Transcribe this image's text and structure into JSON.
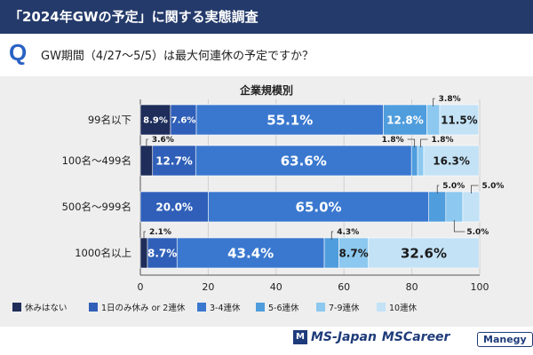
{
  "header": {
    "title": "「2024年GWの予定」に関する実態調査",
    "q_mark": "Q",
    "question": "GW期間（4/27〜5/5）は最大何連休の予定ですか？"
  },
  "chart_data": {
    "type": "bar",
    "orientation": "horizontal",
    "stacked": true,
    "title": "企業規模別",
    "categories": [
      "99名以下",
      "100名〜499名",
      "500名〜999名",
      "1000名以上"
    ],
    "series": [
      {
        "name": "休みはない",
        "color": "#1e2d5a",
        "values": [
          8.9,
          3.6,
          0.0,
          2.1
        ]
      },
      {
        "name": "1日のみ休み or 2連休",
        "color": "#2f5fb8",
        "values": [
          7.6,
          12.7,
          20.0,
          8.7
        ]
      },
      {
        "name": "3-4連休",
        "color": "#3a78cf",
        "values": [
          55.1,
          63.6,
          65.0,
          43.4
        ]
      },
      {
        "name": "5-6連休",
        "color": "#4f9ddd",
        "values": [
          12.8,
          1.8,
          5.0,
          4.3
        ]
      },
      {
        "name": "7-9連休",
        "color": "#8cc8ef",
        "values": [
          3.8,
          1.8,
          5.0,
          8.7
        ]
      },
      {
        "name": "10連休",
        "color": "#c3e2f6",
        "values": [
          11.5,
          16.3,
          5.0,
          32.6
        ]
      }
    ],
    "xlim": [
      0,
      100
    ],
    "xticks": [
      0,
      20,
      40,
      60,
      80,
      100
    ],
    "grid": true,
    "legend_position": "bottom",
    "value_labels": [
      [
        {
          "series": 0,
          "text": "8.9%",
          "place": "inside",
          "size": "s",
          "color": "light"
        },
        {
          "series": 1,
          "text": "7.6%",
          "place": "inside",
          "size": "s",
          "color": "light"
        },
        {
          "series": 2,
          "text": "55.1%",
          "place": "inside",
          "size": "l",
          "color": "light"
        },
        {
          "series": 3,
          "text": "12.8%",
          "place": "inside",
          "size": "m",
          "color": "light"
        },
        {
          "series": 4,
          "text": "3.8%",
          "place": "above-callout",
          "size": "xs",
          "color": "dark"
        },
        {
          "series": 5,
          "text": "11.5%",
          "place": "inside",
          "size": "m",
          "color": "dark"
        }
      ],
      [
        {
          "series": 0,
          "text": "3.6%",
          "place": "above-callout",
          "size": "xs",
          "color": "dark"
        },
        {
          "series": 1,
          "text": "12.7%",
          "place": "inside",
          "size": "m",
          "color": "light"
        },
        {
          "series": 2,
          "text": "63.6%",
          "place": "inside",
          "size": "l",
          "color": "light"
        },
        {
          "series": 3,
          "text": "1.8%",
          "place": "above-callout-left",
          "size": "xs",
          "color": "dark"
        },
        {
          "series": 4,
          "text": "1.8%",
          "place": "above-callout-right",
          "size": "xs",
          "color": "dark"
        },
        {
          "series": 5,
          "text": "16.3%",
          "place": "inside",
          "size": "m",
          "color": "dark"
        }
      ],
      [
        {
          "series": 1,
          "text": "20.0%",
          "place": "inside",
          "size": "m",
          "color": "light"
        },
        {
          "series": 2,
          "text": "65.0%",
          "place": "inside",
          "size": "l",
          "color": "light"
        },
        {
          "series": 3,
          "text": "5.0%",
          "place": "above-callout",
          "size": "xs",
          "color": "dark"
        },
        {
          "series": 4,
          "text": "5.0%",
          "place": "below-callout",
          "size": "xs",
          "color": "dark"
        },
        {
          "series": 5,
          "text": "5.0%",
          "place": "above-callout-right",
          "size": "xs",
          "color": "dark"
        }
      ],
      [
        {
          "series": 0,
          "text": "2.1%",
          "place": "above-callout",
          "size": "xs",
          "color": "dark"
        },
        {
          "series": 1,
          "text": "8.7%",
          "place": "inside",
          "size": "m",
          "color": "light"
        },
        {
          "series": 2,
          "text": "43.4%",
          "place": "inside",
          "size": "l",
          "color": "light"
        },
        {
          "series": 3,
          "text": "4.3%",
          "place": "above-callout",
          "size": "xs",
          "color": "dark"
        },
        {
          "series": 4,
          "text": "8.7%",
          "place": "inside",
          "size": "m",
          "color": "dark"
        },
        {
          "series": 5,
          "text": "32.6%",
          "place": "inside",
          "size": "l",
          "color": "dark"
        }
      ]
    ]
  },
  "footer": {
    "logo_mark": "M",
    "brand_1": "MS-Japan",
    "brand_2": "MSCareer",
    "brand_3": "Manegy"
  }
}
